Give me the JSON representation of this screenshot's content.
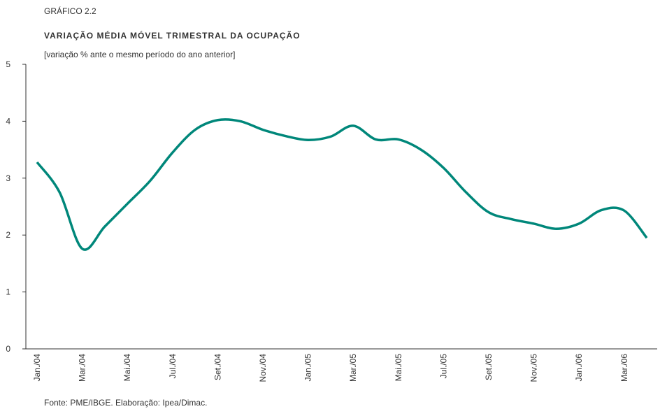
{
  "chart_data": {
    "type": "line",
    "label": "GRÁFICO 2.2",
    "title": "VARIAÇÃO MÉDIA MÓVEL TRIMESTRAL DA OCUPAÇÃO",
    "subtitle": "[variação % ante o mesmo período do ano anterior]",
    "source": "Fonte: PME/IBGE. Elaboração: Ipea/Dimac.",
    "categories": [
      "Jan./04",
      null,
      "Mar./04",
      null,
      "Mai./04",
      null,
      "Jul./04",
      null,
      "Set./04",
      null,
      "Nov./04",
      null,
      "Jan./05",
      null,
      "Mar./05",
      null,
      "Mai./05",
      null,
      "Jul./05",
      null,
      "Set./05",
      null,
      "Nov./05",
      null,
      "Jan./06",
      null,
      "Mar./06",
      null
    ],
    "series": [
      {
        "name": "Ocupação",
        "color": "#00877a",
        "values": [
          3.28,
          2.75,
          1.76,
          2.15,
          2.55,
          2.95,
          3.45,
          3.85,
          4.02,
          4.0,
          3.85,
          3.74,
          3.67,
          3.73,
          3.92,
          3.68,
          3.68,
          3.5,
          3.18,
          2.75,
          2.4,
          2.28,
          2.2,
          2.11,
          2.2,
          2.44,
          2.43,
          1.95
        ]
      }
    ],
    "ylim": [
      0,
      5
    ],
    "yticks": [
      0,
      1,
      2,
      3,
      4,
      5
    ]
  }
}
